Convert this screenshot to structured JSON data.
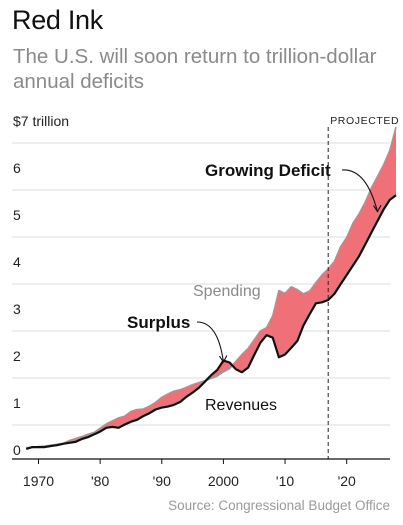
{
  "title": "Red Ink",
  "subtitle": "The U.S. will soon return to trillion-dollar annual deficits",
  "source": "Source: Congressional Budget Office",
  "chart_data": {
    "type": "area",
    "title": "Red Ink",
    "subtitle": "The U.S. will soon return to trillion-dollar annual deficits",
    "xlabel": "",
    "ylabel": "",
    "xlim": [
      1967,
      2028
    ],
    "ylim": [
      0,
      7
    ],
    "y_unit_label": "$7 trillion",
    "y_ticks": [
      {
        "value": 0,
        "label": "0"
      },
      {
        "value": 1,
        "label": "1"
      },
      {
        "value": 2,
        "label": "2"
      },
      {
        "value": 3,
        "label": "3"
      },
      {
        "value": 4,
        "label": "4"
      },
      {
        "value": 5,
        "label": "5"
      },
      {
        "value": 6,
        "label": "6"
      },
      {
        "value": 7,
        "label": "$7 trillion"
      }
    ],
    "x_ticks": [
      {
        "value": 1970,
        "label": "1970"
      },
      {
        "value": 1980,
        "label": "'80"
      },
      {
        "value": 1990,
        "label": "'90"
      },
      {
        "value": 2000,
        "label": "2000"
      },
      {
        "value": 2010,
        "label": "'10"
      },
      {
        "value": 2020,
        "label": "'20"
      }
    ],
    "grid": true,
    "projection_start": 2017,
    "projection_label": "PROJECTED",
    "deficit_color": "#f07077",
    "spending_color": "#9a9a9a",
    "revenue_color": "#111111",
    "x": [
      1968,
      1969,
      1970,
      1971,
      1972,
      1973,
      1974,
      1975,
      1976,
      1977,
      1978,
      1979,
      1980,
      1981,
      1982,
      1983,
      1984,
      1985,
      1986,
      1987,
      1988,
      1989,
      1990,
      1991,
      1992,
      1993,
      1994,
      1995,
      1996,
      1997,
      1998,
      1999,
      2000,
      2001,
      2002,
      2003,
      2004,
      2005,
      2006,
      2007,
      2008,
      2009,
      2010,
      2011,
      2012,
      2013,
      2014,
      2015,
      2016,
      2017,
      2018,
      2019,
      2020,
      2021,
      2022,
      2023,
      2024,
      2025,
      2026,
      2027,
      2028
    ],
    "series": [
      {
        "name": "Spending",
        "values": [
          0.18,
          0.18,
          0.2,
          0.21,
          0.23,
          0.25,
          0.27,
          0.33,
          0.37,
          0.41,
          0.46,
          0.5,
          0.59,
          0.68,
          0.75,
          0.81,
          0.85,
          0.95,
          0.99,
          1.0,
          1.06,
          1.14,
          1.25,
          1.32,
          1.38,
          1.41,
          1.46,
          1.52,
          1.56,
          1.6,
          1.65,
          1.7,
          1.79,
          1.86,
          2.01,
          2.16,
          2.29,
          2.47,
          2.66,
          2.73,
          2.98,
          3.52,
          3.46,
          3.6,
          3.54,
          3.45,
          3.51,
          3.69,
          3.85,
          3.98,
          4.14,
          4.45,
          4.65,
          4.95,
          5.15,
          5.4,
          5.7,
          5.95,
          6.2,
          6.5,
          7.0
        ]
      },
      {
        "name": "Revenues",
        "values": [
          0.15,
          0.19,
          0.19,
          0.19,
          0.21,
          0.23,
          0.26,
          0.28,
          0.3,
          0.36,
          0.4,
          0.46,
          0.52,
          0.6,
          0.62,
          0.6,
          0.67,
          0.73,
          0.77,
          0.85,
          0.91,
          0.99,
          1.03,
          1.05,
          1.09,
          1.15,
          1.26,
          1.35,
          1.45,
          1.58,
          1.72,
          1.83,
          2.03,
          1.99,
          1.85,
          1.78,
          1.88,
          2.15,
          2.41,
          2.57,
          2.52,
          2.1,
          2.16,
          2.3,
          2.45,
          2.78,
          3.02,
          3.25,
          3.27,
          3.32,
          3.45,
          3.65,
          3.85,
          4.05,
          4.25,
          4.5,
          4.75,
          5.0,
          5.25,
          5.45,
          5.55
        ]
      }
    ],
    "annotations": [
      {
        "label": "Growing Deficit",
        "x": 2025,
        "y": 5.2
      },
      {
        "label": "Surplus",
        "x": 2000,
        "y": 2.0
      },
      {
        "label": "Spending",
        "x": 2007,
        "y": 3.4
      },
      {
        "label": "Revenues",
        "x": 2007,
        "y": 1.0
      }
    ]
  }
}
